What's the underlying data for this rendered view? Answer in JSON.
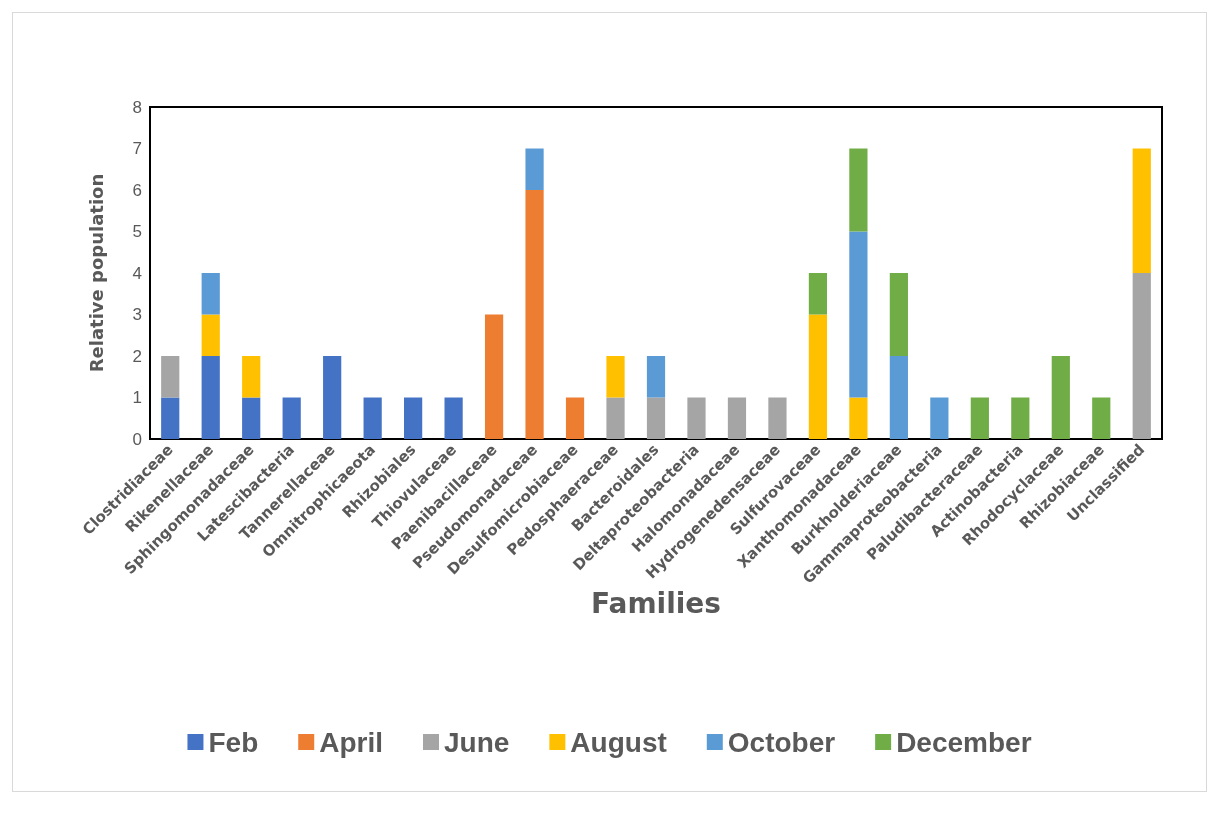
{
  "chart_data": {
    "type": "bar",
    "stacked": true,
    "xlabel": "Families",
    "ylabel": "Relative population",
    "ylim": [
      0,
      8
    ],
    "yticks": [
      0,
      1,
      2,
      3,
      4,
      5,
      6,
      7,
      8
    ],
    "grid": false,
    "legend": "bottom",
    "categories": [
      "Clostridiaceae",
      "Rikenellaceae",
      "Sphingomonadaceae",
      "Latescibacteria",
      "Tannerellaceae",
      "Omnitrophicaeota",
      "Rhizobiales",
      "Thiovulaceae",
      "Paenibacillaceae",
      "Pseudomonadaceae",
      "Desulfomicrobiaceae",
      "Pedosphaeraceae",
      "Bacteroidales",
      "Deltaproteobacteria",
      "Halomonadaceae",
      "Hydrogenedensaceae",
      "Sulfurovaceae",
      "Xanthomonadaceae",
      "Burkholderiaceae",
      "Gammaproteobacteria",
      "Paludibacteraceae",
      "Actinobacteria",
      "Rhodocyclaceae",
      "Rhizobiaceae",
      "Unclassified"
    ],
    "series": [
      {
        "name": "Feb",
        "color": "#4472c4",
        "values": [
          1,
          2,
          1,
          1,
          2,
          1,
          1,
          1,
          null,
          null,
          null,
          null,
          null,
          null,
          null,
          null,
          null,
          null,
          null,
          null,
          null,
          null,
          null,
          null,
          null
        ]
      },
      {
        "name": "April",
        "color": "#ed7d31",
        "values": [
          null,
          null,
          null,
          null,
          null,
          null,
          null,
          null,
          3,
          6,
          1,
          null,
          null,
          null,
          null,
          null,
          null,
          null,
          null,
          null,
          null,
          null,
          null,
          null,
          null
        ]
      },
      {
        "name": "June",
        "color": "#a5a5a5",
        "values": [
          1,
          null,
          null,
          null,
          null,
          null,
          null,
          null,
          null,
          null,
          null,
          1,
          1,
          1,
          1,
          1,
          null,
          null,
          null,
          null,
          null,
          null,
          null,
          null,
          4
        ]
      },
      {
        "name": "August",
        "color": "#ffc000",
        "values": [
          null,
          1,
          1,
          null,
          null,
          null,
          null,
          null,
          null,
          null,
          null,
          1,
          null,
          null,
          null,
          null,
          3,
          1,
          null,
          null,
          null,
          null,
          null,
          null,
          3
        ]
      },
      {
        "name": "October",
        "color": "#5b9bd5",
        "values": [
          null,
          1,
          null,
          null,
          null,
          null,
          null,
          null,
          null,
          1,
          null,
          null,
          1,
          null,
          null,
          null,
          null,
          4,
          2,
          1,
          null,
          null,
          null,
          null,
          null
        ]
      },
      {
        "name": "December",
        "color": "#70ad47",
        "values": [
          null,
          null,
          null,
          null,
          null,
          null,
          null,
          null,
          null,
          null,
          null,
          null,
          null,
          null,
          null,
          null,
          1,
          2,
          2,
          null,
          1,
          1,
          2,
          1,
          null
        ]
      }
    ]
  }
}
